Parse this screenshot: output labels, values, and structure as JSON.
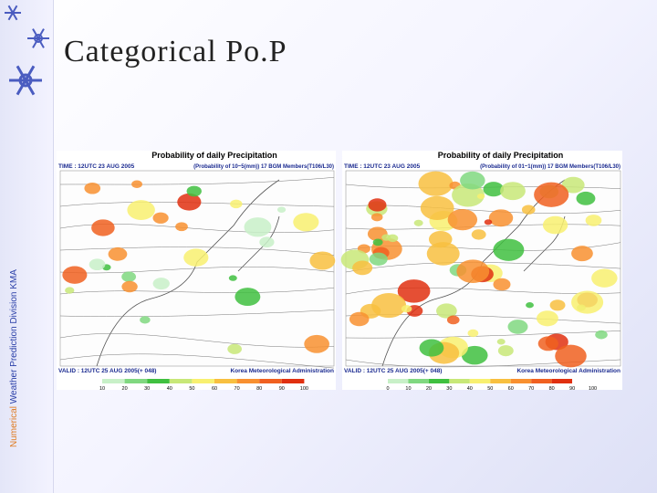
{
  "slide": {
    "side_text": {
      "part1": "Numerical",
      "part2": "Weather Prediction Division",
      "part3": "KMA"
    },
    "title": "Categorical Po.P",
    "maps": [
      {
        "title": "Probability of daily Precipitation",
        "time": "TIME : 12UTC 23 AUG 2005",
        "desc": "(Probability of 10~5(mm)) 17 BGM Members(T106/L30)",
        "valid": "VALID : 12UTC 25 AUG 2005(+ 048)",
        "agency": "Korea Meteorological Administration",
        "scale": [
          "10",
          "20",
          "30",
          "40",
          "50",
          "60",
          "70",
          "80",
          "90",
          "100"
        ]
      },
      {
        "title": "Probability of daily Precipitation",
        "time": "TIME : 12UTC 23 AUG 2005",
        "desc": "(Probability of 01~1(mm)) 17 BGM Members(T106/L30)",
        "valid": "VALID : 12UTC 25 AUG 2005(+ 048)",
        "agency": "Korea Meteorological Administration",
        "scale": [
          "0",
          "10",
          "20",
          "30",
          "40",
          "50",
          "60",
          "70",
          "80",
          "90",
          "100"
        ]
      }
    ]
  }
}
